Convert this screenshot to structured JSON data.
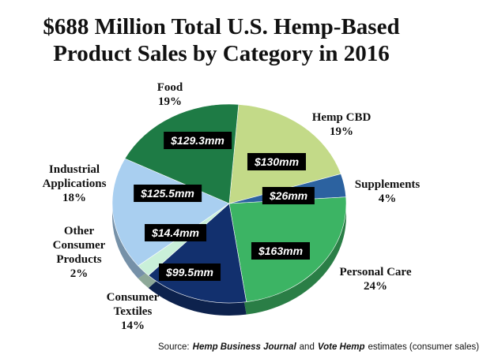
{
  "chart_data": {
    "type": "pie",
    "title_lines": [
      "$688 Million Total U.S. Hemp-Based",
      "Product Sales by Category in 2016"
    ],
    "categories": [
      "Hemp CBD",
      "Supplements",
      "Personal Care",
      "Consumer\nTextiles",
      "Other\nConsumer\nProducts",
      "Industrial\nApplications",
      "Food"
    ],
    "values": [
      130,
      26,
      163,
      99.5,
      14.4,
      125.5,
      129.3
    ],
    "value_labels": [
      "$130mm",
      "$26mm",
      "$163mm",
      "$99.5mm",
      "$14.4mm",
      "$125.5mm",
      "$129.3mm"
    ],
    "percent_labels": [
      "19%",
      "4%",
      "24%",
      "14%",
      "2%",
      "18%",
      "19%"
    ],
    "colors": [
      "#c3da88",
      "#2c62a0",
      "#3cb464",
      "#12306e",
      "#c9f0d9",
      "#a9cff0",
      "#1e7b45"
    ],
    "source": [
      "Source:",
      "Hemp Business Journal",
      "and",
      "Vote Hemp",
      "estimates (consumer sales)"
    ]
  }
}
